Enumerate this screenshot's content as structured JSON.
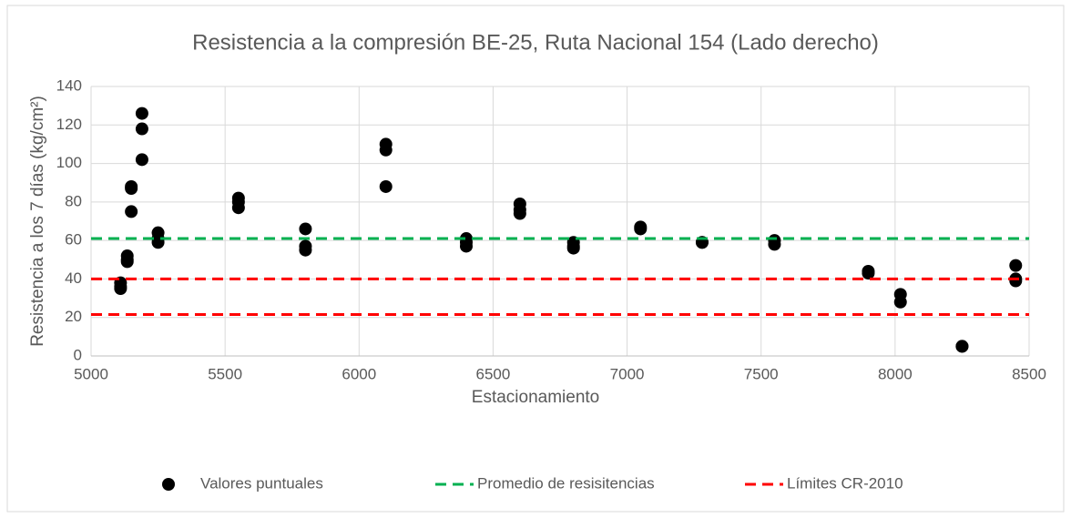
{
  "chart_data": {
    "type": "scatter",
    "title": "Resistencia a la compresión BE-25, Ruta Nacional 154 (Lado derecho)",
    "x_label": "Estacionamiento",
    "y_label": "Resistencia a los 7 días (kg/cm²)",
    "xlim": [
      5000,
      8500
    ],
    "xticks": [
      5000,
      5500,
      6000,
      6500,
      7000,
      7500,
      8000,
      8500
    ],
    "ylim": [
      0,
      140
    ],
    "yticks": [
      0,
      20,
      40,
      60,
      80,
      100,
      120,
      140
    ],
    "grid": true,
    "legend": "bottom",
    "series": [
      {
        "name": "Valores puntuales",
        "kind": "points",
        "color": "#000000",
        "x": [
          5110,
          5110,
          5110,
          5135,
          5135,
          5135,
          5150,
          5150,
          5150,
          5190,
          5190,
          5190,
          5250,
          5250,
          5250,
          5550,
          5550,
          5550,
          5800,
          5800,
          5800,
          6100,
          6100,
          6100,
          6400,
          6400,
          6400,
          6600,
          6600,
          6600,
          6800,
          6800,
          6800,
          7050,
          7050,
          7280,
          7280,
          7550,
          7550,
          7900,
          7900,
          8020,
          8020,
          8250,
          8250,
          8450,
          8450,
          8450
        ],
        "values": [
          38,
          36,
          35,
          52,
          50,
          49,
          88,
          87,
          75,
          126,
          118,
          102,
          64,
          61,
          59,
          82,
          80,
          77,
          66,
          57,
          55,
          110,
          107,
          88,
          61,
          59,
          57,
          79,
          76,
          74,
          59,
          57,
          56,
          67,
          66,
          59,
          59,
          60,
          58,
          44,
          43,
          32,
          28,
          5,
          5,
          47,
          40,
          39
        ]
      },
      {
        "name": "Promedio de resisitencias",
        "kind": "levels",
        "color": "#00b050",
        "values": [
          61
        ]
      },
      {
        "name": "Límites CR-2010",
        "kind": "levels",
        "color": "#ff0000",
        "values": [
          40,
          21.5
        ]
      }
    ]
  }
}
